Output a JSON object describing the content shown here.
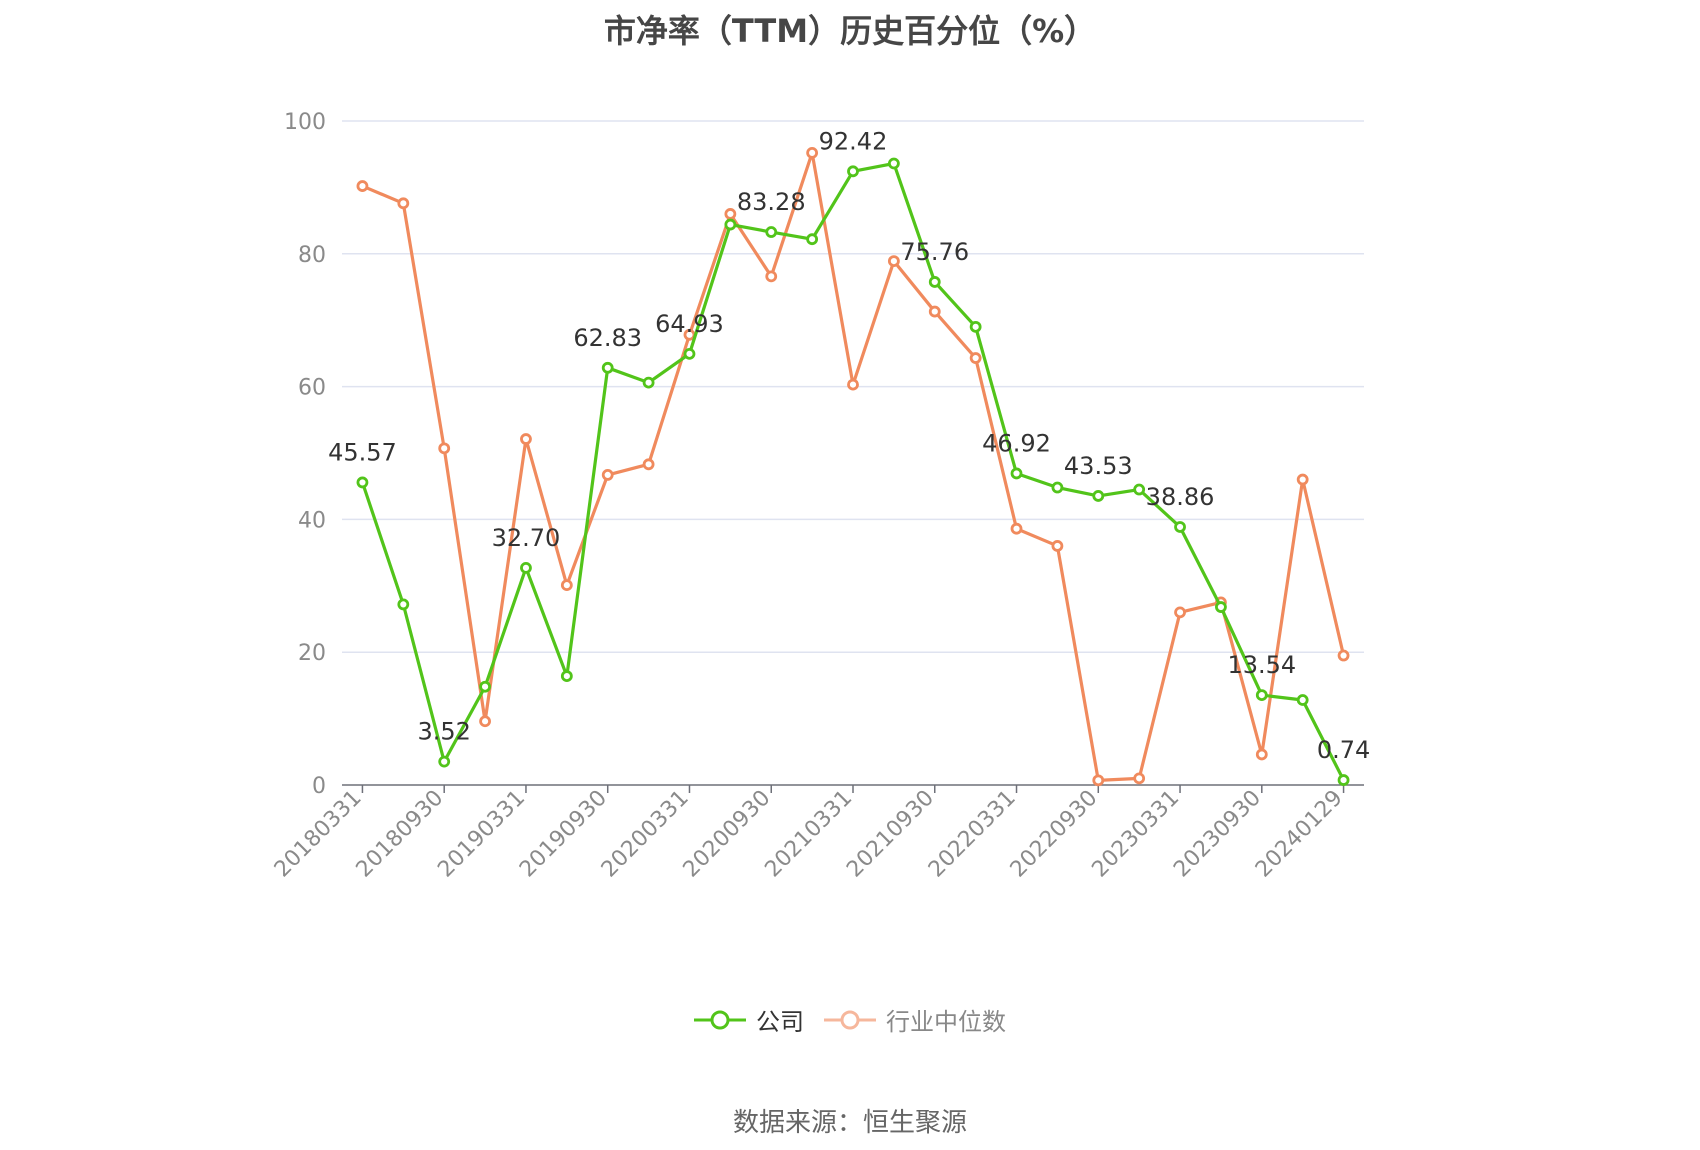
{
  "chart_data": {
    "type": "line",
    "title": "市净率（TTM）历史百分位（%）",
    "xlabel": "",
    "ylabel": "",
    "ylim": [
      0,
      100
    ],
    "yticks": [
      0,
      20,
      40,
      60,
      80,
      100
    ],
    "grid": true,
    "legend_position": "bottom",
    "x_tick_labels": [
      "20180331",
      "20180930",
      "20190331",
      "20190930",
      "20200331",
      "20200930",
      "20210331",
      "20210930",
      "20220331",
      "20220930",
      "20230331",
      "20230930",
      "20240129"
    ],
    "series": [
      {
        "name": "公司",
        "color": "#52c41a",
        "values": [
          45.57,
          27.2,
          3.52,
          14.8,
          32.7,
          16.4,
          62.83,
          60.6,
          64.93,
          84.4,
          83.28,
          82.2,
          92.42,
          93.6,
          75.76,
          69.0,
          46.92,
          44.8,
          43.53,
          44.5,
          38.86,
          26.8,
          13.54,
          12.8,
          0.74
        ],
        "labels": [
          "45.57",
          "",
          "3.52",
          "",
          "32.70",
          "",
          "62.83",
          "",
          "64.93",
          "",
          "83.28",
          "",
          "92.42",
          "",
          "75.76",
          "",
          "46.92",
          "",
          "43.53",
          "",
          "38.86",
          "",
          "13.54",
          "",
          "0.74"
        ]
      },
      {
        "name": "行业中位数",
        "color": "#f08a5d",
        "values": [
          90.2,
          87.6,
          50.7,
          9.6,
          52.1,
          30.1,
          46.7,
          48.3,
          67.8,
          86.0,
          76.6,
          95.2,
          60.3,
          78.9,
          71.3,
          64.3,
          38.6,
          36.0,
          0.7,
          1.0,
          26.0,
          27.5,
          4.6,
          46.0,
          19.5
        ]
      }
    ]
  },
  "legend": {
    "company": "公司",
    "industry": "行业中位数"
  },
  "source_note": "数据来源：恒生聚源"
}
